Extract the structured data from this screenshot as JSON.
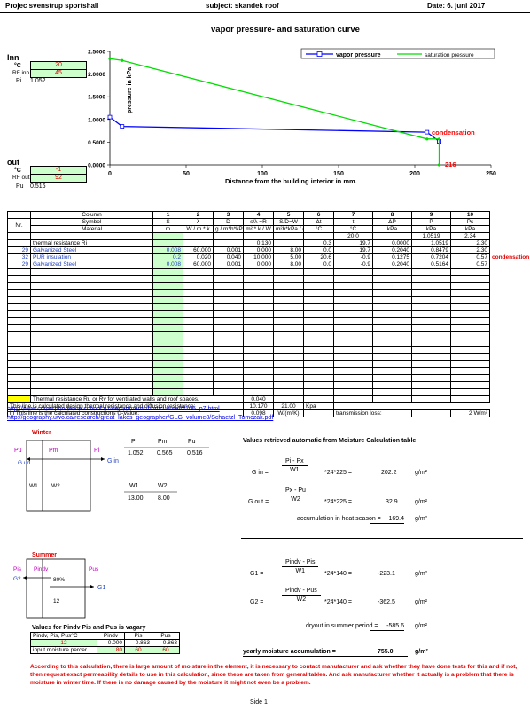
{
  "header": {
    "project": "Projec svenstrup sportshall",
    "subject": "subject: skandek roof",
    "date": "Date:  6. juni 2017"
  },
  "chart_data": {
    "type": "line",
    "title": "vapor pressure- and saturation curve",
    "xlabel": "Distance from the building interior in mm.",
    "ylabel": "pressure in kPa",
    "xlim": [
      0,
      250
    ],
    "ylim": [
      0,
      2.5
    ],
    "xticks": [
      "0",
      "50",
      "100",
      "150",
      "200",
      "250"
    ],
    "yticks": [
      "0.0000",
      "0.5000",
      "1.0000",
      "1.5000",
      "2.0000",
      "2.5000"
    ],
    "series": [
      {
        "name": "vapor pressure",
        "color": "#0000ff",
        "x": [
          0,
          8,
          208,
          216,
          216
        ],
        "y": [
          1.052,
          0.8479,
          0.7204,
          0.5164,
          0.516
        ]
      },
      {
        "name": "saturation pressure",
        "color": "#00dd00",
        "x": [
          0,
          8,
          208,
          216,
          216
        ],
        "y": [
          2.34,
          2.3,
          0.57,
          0.57,
          0.0
        ]
      }
    ],
    "legend_position": "top-right",
    "annotations": [
      {
        "text": "condensation",
        "color": "#ff0000"
      },
      {
        "text": "216",
        "color": "#ff0000"
      }
    ]
  },
  "inn": {
    "title": "Inn",
    "temp_label": "°C",
    "temp_value": "20",
    "rf_label": "RF inh.",
    "rf_value": "45",
    "pi_label": "Pi",
    "pi_value": "1.052"
  },
  "out": {
    "title": "out",
    "temp_label": "°C",
    "temp_value": "-1",
    "rf_label": "RF out.",
    "rf_value": "92",
    "pu_label": "Pu",
    "pu_value": "0.516"
  },
  "table": {
    "row_column": [
      "Column",
      "1",
      "2",
      "3",
      "4",
      "5",
      "6",
      "7",
      "8",
      "9",
      "10"
    ],
    "row_symbol": [
      "Symbol",
      "S",
      "λ",
      "D",
      "s/λ =R",
      "S/D=W",
      "Δt",
      "t",
      "ΔP",
      "P",
      "Ps"
    ],
    "nr_label": "Nr.",
    "material_label": "Material",
    "units": [
      "m",
      "W / m * k",
      "g / m*h*kPa",
      "m² * k / W",
      "m²h*kPa / g",
      "°C",
      "°C",
      "kPa",
      "kPa",
      "kPa"
    ],
    "top_row": {
      "c7": "20.0",
      "c9": "1.0519",
      "c10": "2.34"
    },
    "rows": [
      {
        "nr": "",
        "material": "thermal resistance Ri",
        "c1": "",
        "c2": "",
        "c3": "",
        "c4": "0.130",
        "c5": "",
        "c6": "0.3",
        "c7": "19.7",
        "c8": "0.0000",
        "c9": "1.0519",
        "c10": "2.30",
        "note": ""
      },
      {
        "nr": "29",
        "material": "Galvanized Steel",
        "c1": "0.008",
        "c2": "60.000",
        "c3": "0.001",
        "c4": "0.000",
        "c5": "8.00",
        "c6": "0.0",
        "c7": "19.7",
        "c8": "0.2040",
        "c9": "0.8479",
        "c10": "2.30",
        "note": ""
      },
      {
        "nr": "32",
        "material": "PUR insulation",
        "c1": "0.2",
        "c2": "0.020",
        "c3": "0.040",
        "c4": "10.000",
        "c5": "5.00",
        "c6": "20.6",
        "c7": "-0.9",
        "c8": "0.1275",
        "c9": "0.7204",
        "c10": "0.57",
        "note": "condensation"
      },
      {
        "nr": "29",
        "material": "Galvanized Steel",
        "c1": "0.008",
        "c2": "60.000",
        "c3": "0.001",
        "c4": "0.000",
        "c5": "8.00",
        "c6": "0.0",
        "c7": "-0.9",
        "c8": "0.2040",
        "c9": "0.5164",
        "c10": "0.57",
        "note": ""
      }
    ],
    "footer1": {
      "label": "Thermal resistance Ru or Rv for ventilated walls and roof spaces.",
      "c4": "0.040"
    },
    "footer2": {
      "label": "This line is calculated design thermal resistance and diffusion resistance:",
      "c4": "10.170",
      "c5": "21.00",
      "c6": "Kpa"
    },
    "footer3": {
      "label": "in This line is the calculated constructions U-Value:",
      "c4": "0.098",
      "c5": "W/(m²K)",
      "c7": "transmission loss:",
      "c10": "2   W/m²"
    }
  },
  "links": [
    "http://www.correspondence.school.nz/departments/horticulture/ht106_p7.html",
    "http://geography.uwo.ca/research/great_lakes_geographer/GLG_volume8/Schaetzl_Tomczak.pdf"
  ],
  "winter": {
    "title": "Winter",
    "pi": "Pi",
    "pm": "Pm",
    "pu": "Pu",
    "g_ud": "G ud",
    "g_in": "G in",
    "w1": "W1",
    "w2": "W2",
    "hdr_pi": "Pi",
    "hdr_pm": "Pm",
    "hdr_pu": "Pu",
    "val_pi": "1.052",
    "val_pm": "0.565",
    "val_pu": "0.516",
    "hdr_w1": "W1",
    "hdr_w2": "W2",
    "val_w1": "13.00",
    "val_w2": "8.00"
  },
  "calc": {
    "title": "Values retrieved automatic from Moisture Calculation table",
    "g_in_label": "G in =",
    "g_in_num": "Pi - Px",
    "g_in_den": "W1",
    "g_in_mult": "*24*225 =",
    "g_in_value": "202.2",
    "g_in_unit": "g/m²",
    "g_out_label": "G out =",
    "g_out_num": "Px - Pu",
    "g_out_den": "W2",
    "g_out_mult": "*24*225 =",
    "g_out_value": "32.9",
    "g_out_unit": "g/m²",
    "acc_label": "accumulation in heat season =",
    "acc_value": "169.4",
    "acc_unit": "g/m²",
    "g1_label": "G1 =",
    "g1_num": "Pindv - Pis",
    "g1_den": "W1",
    "g1_mult": "*24*140 =",
    "g1_value": "-223.1",
    "g1_unit": "g/m²",
    "g2_label": "G2 =",
    "g2_num": "Pindv - Pus",
    "g2_den": "W2",
    "g2_mult": "*24*140 =",
    "g2_value": "-362.5",
    "g2_unit": "g/m²",
    "dry_label": "dryout in summer period =",
    "dry_value": "-585.6",
    "dry_unit": "g/m²",
    "year_label": "yearly moisture accumulation =",
    "year_value": "755.0",
    "year_unit": "g/m²"
  },
  "summer": {
    "title": "Summer",
    "pis": "Pis",
    "pindv": "Pindv",
    "pus": "Pus",
    "g2": "G2",
    "g1": "G1",
    "pct": "80%",
    "num12": "12"
  },
  "vary": {
    "title": "Values for Pindv Pis and Pus is vagary",
    "h0": "Pindv, Pis, Pus°C",
    "h1": "Pindv",
    "h2": "Pis",
    "h3": "Pus",
    "r1": [
      "12",
      "0.000",
      "0.863",
      "0.863"
    ],
    "r2": [
      "input moisture percer",
      "80",
      "60",
      "60"
    ]
  },
  "warning": "According to this calculation, there is large amount of moisture in the element, it is necessary to contact manufacturer and ask whether they have done tests for this and if not, then request exact permeability details to use in this calculation, since these are taken from general tables. And ask manufacturer whether it actually is a problem that there is moisture in winter time. If there is no damage caused by the moisture it might not even be a problem.",
  "footer": "Side 1"
}
